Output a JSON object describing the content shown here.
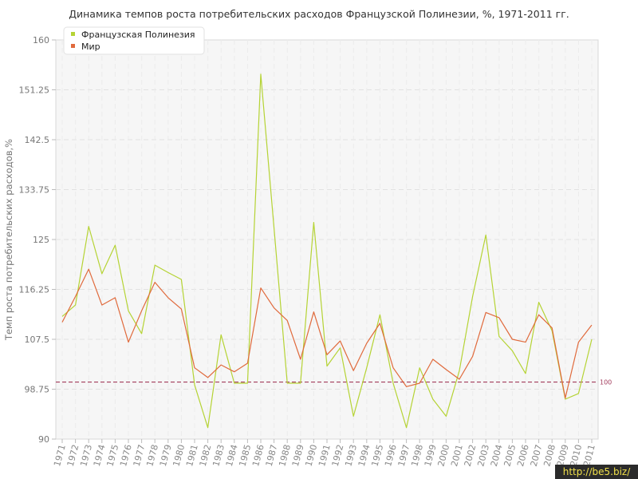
{
  "chart_data": {
    "type": "line",
    "title": "Динамика темпов роста потребительских расходов Французской Полинезии, %, 1971-2011 гг.",
    "ylabel": "Темп роста потребительских расходов,%",
    "xlabel": "",
    "ylim": [
      90,
      160
    ],
    "y_ticks": [
      "90",
      "98.75",
      "107.5",
      "116.25",
      "125",
      "133.75",
      "142.5",
      "151.25",
      "160"
    ],
    "categories": [
      "1971",
      "1972",
      "1973",
      "1974",
      "1975",
      "1976",
      "1977",
      "1978",
      "1979",
      "1980",
      "1981",
      "1982",
      "1983",
      "1984",
      "1985",
      "1986",
      "1987",
      "1988",
      "1989",
      "1990",
      "1991",
      "1992",
      "1993",
      "1994",
      "1995",
      "1996",
      "1997",
      "1998",
      "1999",
      "2000",
      "2001",
      "2002",
      "2003",
      "2004",
      "2005",
      "2006",
      "2007",
      "2008",
      "2009",
      "2010",
      "2011"
    ],
    "series": [
      {
        "name": "Французская Полинезия",
        "color": "#b5d334",
        "values": [
          111.5,
          113.5,
          127.3,
          119.0,
          124.0,
          112.5,
          108.5,
          120.5,
          119.2,
          118.0,
          99.5,
          92.0,
          108.3,
          99.8,
          99.8,
          154.0,
          127.0,
          99.8,
          99.8,
          128.0,
          102.8,
          106.0,
          94.0,
          102.5,
          111.8,
          99.8,
          92.0,
          102.5,
          97.0,
          94.0,
          102.0,
          115.0,
          125.8,
          108.0,
          105.5,
          101.5,
          114.0,
          109.0,
          97.0,
          98.0,
          107.5
        ]
      },
      {
        "name": "Мир",
        "color": "#e06a3c",
        "values": [
          110.5,
          115.0,
          119.8,
          113.5,
          114.8,
          107.0,
          112.5,
          117.5,
          114.8,
          112.8,
          102.5,
          100.8,
          103.0,
          101.8,
          103.3,
          116.5,
          113.0,
          110.8,
          104.0,
          112.3,
          104.8,
          107.2,
          102.0,
          106.8,
          110.3,
          102.5,
          99.2,
          99.8,
          104.0,
          102.2,
          100.5,
          104.5,
          112.2,
          111.3,
          107.5,
          107.0,
          111.8,
          109.5,
          97.2,
          107.0,
          110.0
        ]
      }
    ],
    "reference_line": {
      "value": 100,
      "label": "100",
      "color": "#a23b5b"
    },
    "grid": true,
    "legend_position": "top-left"
  },
  "watermark": "http://be5.biz/"
}
